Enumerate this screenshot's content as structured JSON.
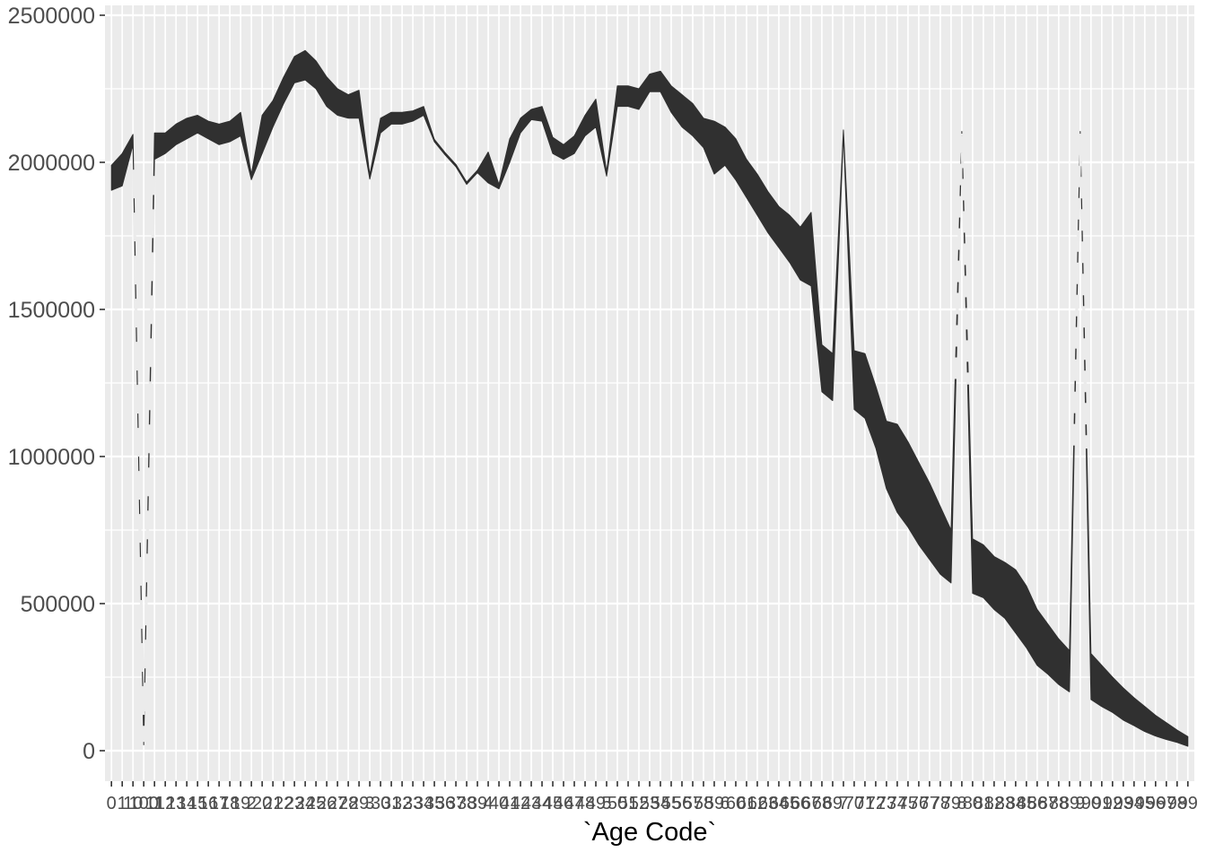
{
  "figure": {
    "colors": {
      "plot_background": "#FFFFFF",
      "panel_bg": "#EBEBEB",
      "grid": "#FFFFFF",
      "band": "#303030",
      "tick_text": "#4D4D4D",
      "tick_mark": "#333333",
      "axis_title": "#000000"
    }
  },
  "chart_data": {
    "type": "area",
    "title": "",
    "xlabel": "`Age Code`",
    "ylabel": "",
    "legend": "none",
    "style": "ggplot2-grey",
    "grid": true,
    "x_is_discrete_lexicographic": true,
    "ylim": [
      0,
      2500000
    ],
    "yticks": [
      0,
      500000,
      1000000,
      1500000,
      2000000,
      2500000
    ],
    "ytick_labels": [
      "0",
      "500000",
      "1000000",
      "1500000",
      "2000000",
      "2500000"
    ],
    "minor_gridlines": [
      250000,
      750000,
      1250000,
      1750000,
      2250000
    ],
    "dashed_spike_categories": [
      "100",
      "8",
      "9"
    ],
    "categories": [
      "0",
      "1",
      "10",
      "100",
      "11",
      "12",
      "13",
      "14",
      "15",
      "16",
      "17",
      "18",
      "19",
      "2",
      "20",
      "21",
      "22",
      "23",
      "24",
      "25",
      "26",
      "27",
      "28",
      "29",
      "3",
      "30",
      "31",
      "32",
      "33",
      "34",
      "35",
      "36",
      "37",
      "38",
      "39",
      "4",
      "40",
      "41",
      "42",
      "43",
      "44",
      "45",
      "46",
      "47",
      "48",
      "49",
      "5",
      "50",
      "51",
      "52",
      "53",
      "54",
      "55",
      "56",
      "57",
      "58",
      "59",
      "6",
      "60",
      "61",
      "62",
      "63",
      "64",
      "65",
      "66",
      "67",
      "68",
      "69",
      "7",
      "70",
      "71",
      "72",
      "73",
      "74",
      "75",
      "76",
      "77",
      "78",
      "79",
      "8",
      "80",
      "81",
      "82",
      "83",
      "84",
      "85",
      "86",
      "87",
      "88",
      "89",
      "9",
      "90",
      "91",
      "92",
      "93",
      "94",
      "95",
      "96",
      "97",
      "98",
      "99"
    ],
    "series": [
      {
        "name": "envelope_upper",
        "values": [
          1990000,
          2030000,
          2095000,
          40000,
          2100000,
          2100000,
          2130000,
          2150000,
          2160000,
          2140000,
          2130000,
          2140000,
          2170000,
          1960000,
          2160000,
          2210000,
          2290000,
          2360000,
          2380000,
          2345000,
          2290000,
          2250000,
          2230000,
          2245000,
          1958000,
          2150000,
          2170000,
          2170000,
          2175000,
          2190000,
          2078000,
          2033000,
          1993000,
          1933000,
          1973000,
          2035000,
          1925000,
          2080000,
          2150000,
          2180000,
          2190000,
          2085000,
          2060000,
          2090000,
          2160000,
          2215000,
          1968000,
          2260000,
          2260000,
          2250000,
          2300000,
          2310000,
          2260000,
          2230000,
          2200000,
          2150000,
          2140000,
          2120000,
          2080000,
          2010000,
          1960000,
          1900000,
          1850000,
          1820000,
          1780000,
          1830000,
          1380000,
          1350000,
          2110000,
          1360000,
          1350000,
          1240000,
          1120000,
          1110000,
          1050000,
          980000,
          910000,
          830000,
          750000,
          2105000,
          720000,
          700000,
          660000,
          640000,
          615000,
          560000,
          480000,
          430000,
          380000,
          340000,
          2105000,
          330000,
          290000,
          250000,
          213000,
          180000,
          150000,
          120000,
          95000,
          70000,
          48000
        ]
      },
      {
        "name": "envelope_lower",
        "values": [
          1905000,
          1920000,
          2060000,
          20000,
          2010000,
          2030000,
          2060000,
          2080000,
          2100000,
          2080000,
          2060000,
          2070000,
          2090000,
          1941000,
          2030000,
          2120000,
          2200000,
          2270000,
          2280000,
          2250000,
          2190000,
          2160000,
          2150000,
          2150000,
          1943000,
          2100000,
          2130000,
          2130000,
          2140000,
          2160000,
          2070000,
          2025000,
          1985000,
          1925000,
          1965000,
          1930000,
          1910000,
          2000000,
          2100000,
          2145000,
          2140000,
          2030000,
          2010000,
          2030000,
          2090000,
          2120000,
          1953000,
          2190000,
          2190000,
          2180000,
          2240000,
          2240000,
          2170000,
          2120000,
          2090000,
          2050000,
          1960000,
          1990000,
          1940000,
          1880000,
          1820000,
          1760000,
          1710000,
          1660000,
          1600000,
          1580000,
          1220000,
          1190000,
          2095000,
          1160000,
          1130000,
          1030000,
          890000,
          810000,
          760000,
          700000,
          650000,
          600000,
          570000,
          2090000,
          535000,
          520000,
          480000,
          450000,
          400000,
          350000,
          290000,
          260000,
          225000,
          200000,
          2090000,
          174000,
          150000,
          130000,
          104000,
          85000,
          65000,
          50000,
          38000,
          28000,
          15000
        ]
      }
    ]
  }
}
